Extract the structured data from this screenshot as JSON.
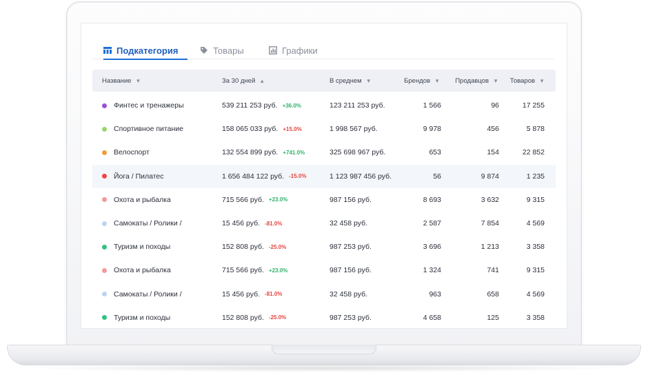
{
  "tabs": [
    {
      "label": "Подкатегория",
      "icon": "table-icon",
      "active": true
    },
    {
      "label": "Товары",
      "icon": "tag-icon",
      "active": false
    },
    {
      "label": "Графики",
      "icon": "chart-icon",
      "active": false
    }
  ],
  "columns": [
    {
      "label": "Название",
      "arrow": "▼"
    },
    {
      "label": "За 30 дней",
      "arrow": "▲"
    },
    {
      "label": "В среднем",
      "arrow": "▼"
    },
    {
      "label": "Брендов",
      "arrow": "▼"
    },
    {
      "label": "Продавцов",
      "arrow": "▼"
    },
    {
      "label": "Товаров",
      "arrow": "▼"
    }
  ],
  "rows": [
    {
      "color": "#9b4fd6",
      "name": "Финтес и тренажеры",
      "total": "539 211 253 руб.",
      "change": "+36.0%",
      "trend": "pos",
      "avg": "123 211 253 руб.",
      "brands": "1 566",
      "sellers": "96",
      "goods": "17 255"
    },
    {
      "color": "#9ad46b",
      "name": "Спортивное питание",
      "total": "158 065 033 руб.",
      "change": "+15.0%",
      "trend": "neg",
      "avg": "1 998 567 руб.",
      "brands": "9 978",
      "sellers": "456",
      "goods": "5 878"
    },
    {
      "color": "#f49a3c",
      "name": "Велоспорт",
      "total": "132 554 899 руб.",
      "change": "+741.0%",
      "trend": "pos",
      "avg": "325 698 967 руб.",
      "brands": "653",
      "sellers": "154",
      "goods": "22 852"
    },
    {
      "color": "#ee4545",
      "name": "Йога / Пилатес",
      "total": "1 656 484 122 руб.",
      "change": "-15.0%",
      "trend": "neg",
      "avg": "1 123 987 456 руб.",
      "brands": "56",
      "sellers": "9 874",
      "goods": "1 235"
    },
    {
      "color": "#f39a9a",
      "name": "Охота и рыбалка",
      "total": "715 566 руб.",
      "change": "+23.0%",
      "trend": "pos",
      "avg": "987 156 руб.",
      "brands": "8 693",
      "sellers": "3 632",
      "goods": "9 315"
    },
    {
      "color": "#bcd3f3",
      "name": "Самокаты / Ролики /",
      "total": "15 456 руб.",
      "change": "-81.0%",
      "trend": "neg",
      "avg": "32 458 руб.",
      "brands": "2 587",
      "sellers": "7 854",
      "goods": "4 569"
    },
    {
      "color": "#33c27e",
      "name": "Туризм и походы",
      "total": "152 808 руб.",
      "change": "-25.0%",
      "trend": "neg",
      "avg": "987 253 руб.",
      "brands": "3 696",
      "sellers": "1 213",
      "goods": "3 358"
    },
    {
      "color": "#f39a9a",
      "name": "Охота и рыбалка",
      "total": "715 566 руб.",
      "change": "+23.0%",
      "trend": "pos",
      "avg": "987 156 руб.",
      "brands": "1 324",
      "sellers": "741",
      "goods": "9 315"
    },
    {
      "color": "#bcd3f3",
      "name": "Самокаты / Ролики /",
      "total": "15 456 руб.",
      "change": "-81.0%",
      "trend": "neg",
      "avg": "32 458 руб.",
      "brands": "963",
      "sellers": "658",
      "goods": "4 569"
    },
    {
      "color": "#33c27e",
      "name": "Туризм и походы",
      "total": "152 808 руб.",
      "change": "-25.0%",
      "trend": "neg",
      "avg": "987 253 руб.",
      "brands": "4 658",
      "sellers": "125",
      "goods": "3 358"
    }
  ],
  "highlighted_row": 3
}
